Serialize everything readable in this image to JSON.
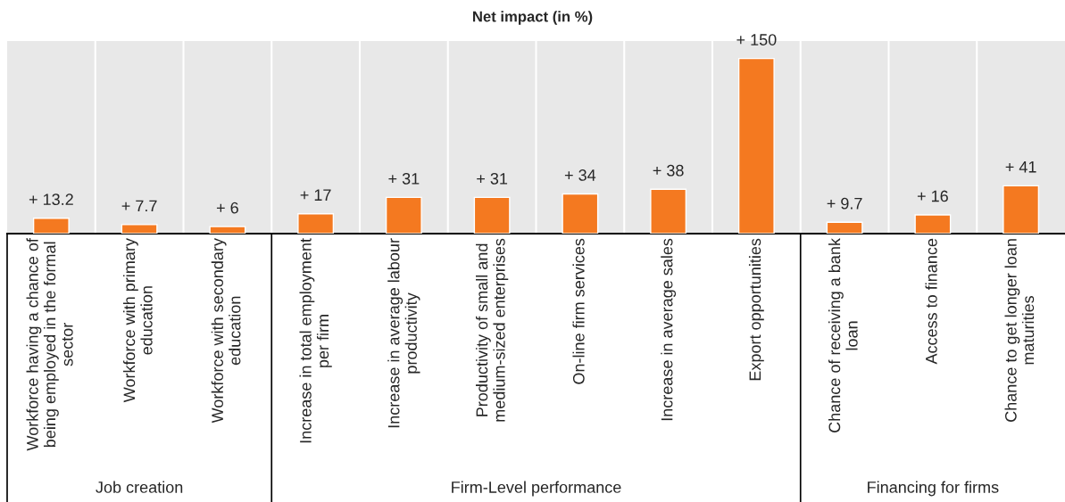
{
  "chart_data": {
    "type": "bar",
    "title": "Net impact (in %)",
    "categories": [
      "Workforce having a chance of being employed in the formal sector",
      "Workforce with primary education",
      "Workforce with secondary education",
      "Increase in total employment per firm",
      "Increase in average labour productivity",
      "Productivity of small and medium-sized enterprises",
      "On-line firm services",
      "Increase in average sales",
      "Export opportunities",
      "Chance of receiving a bank loan",
      "Access to finance",
      "Chance to get longer loan maturities"
    ],
    "values": [
      13.2,
      7.7,
      6,
      17,
      31,
      31,
      34,
      38,
      150,
      9.7,
      16,
      41
    ],
    "value_labels": [
      "+ 13.2",
      "+ 7.7",
      "+ 6",
      "+ 17",
      "+ 31",
      "+ 31",
      "+ 34",
      "+ 38",
      "+ 150",
      "+ 9.7",
      "+ 16",
      "+ 41"
    ],
    "color": "#f47920",
    "annotations": [
      "Job creation",
      "Firm-Level performance",
      "Financing for firms"
    ]
  }
}
